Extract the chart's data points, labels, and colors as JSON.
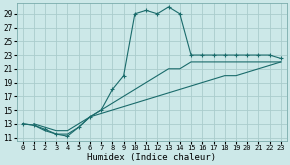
{
  "xlabel": "Humidex (Indice chaleur)",
  "background_color": "#cce8e8",
  "grid_color": "#aacccc",
  "line_color": "#1a6b6b",
  "xlim": [
    -0.5,
    23.5
  ],
  "ylim": [
    10.5,
    30.5
  ],
  "xticks": [
    0,
    1,
    2,
    3,
    4,
    5,
    6,
    7,
    8,
    9,
    10,
    11,
    12,
    13,
    14,
    15,
    16,
    17,
    18,
    19,
    20,
    21,
    22,
    23
  ],
  "yticks": [
    11,
    13,
    15,
    17,
    19,
    21,
    23,
    25,
    27,
    29
  ],
  "line1_x": [
    0,
    1,
    2,
    3,
    4,
    5,
    6,
    7,
    8,
    9,
    10,
    11,
    12,
    13,
    14,
    15,
    16,
    17,
    18,
    19,
    20,
    21,
    22,
    23
  ],
  "line1_y": [
    13,
    12.8,
    12.2,
    11.5,
    11.2,
    12.5,
    14,
    15,
    18,
    20,
    29,
    29.5,
    29,
    30,
    29,
    23,
    23,
    23,
    23,
    23,
    23,
    23,
    23,
    22.5
  ],
  "line2_x": [
    1,
    2,
    3,
    4,
    5,
    6,
    7,
    8,
    9,
    10,
    11,
    12,
    13,
    14,
    15,
    16,
    17,
    18,
    19,
    20,
    21,
    22,
    23
  ],
  "line2_y": [
    13,
    12.5,
    12,
    12,
    13,
    14,
    15,
    16,
    17,
    18,
    19,
    20,
    21,
    21,
    22,
    22,
    22,
    22,
    22,
    22,
    22,
    22,
    22
  ],
  "line3_x": [
    0,
    1,
    2,
    3,
    4,
    5,
    6,
    7,
    8,
    9,
    10,
    11,
    12,
    13,
    14,
    15,
    16,
    17,
    18,
    19,
    20,
    21,
    22,
    23
  ],
  "line3_y": [
    13,
    12.8,
    12,
    11.5,
    11.5,
    12.5,
    14,
    14.5,
    15,
    15.5,
    16,
    16.5,
    17,
    17.5,
    18,
    18.5,
    19,
    19.5,
    20,
    20,
    20.5,
    21,
    21.5,
    22
  ]
}
